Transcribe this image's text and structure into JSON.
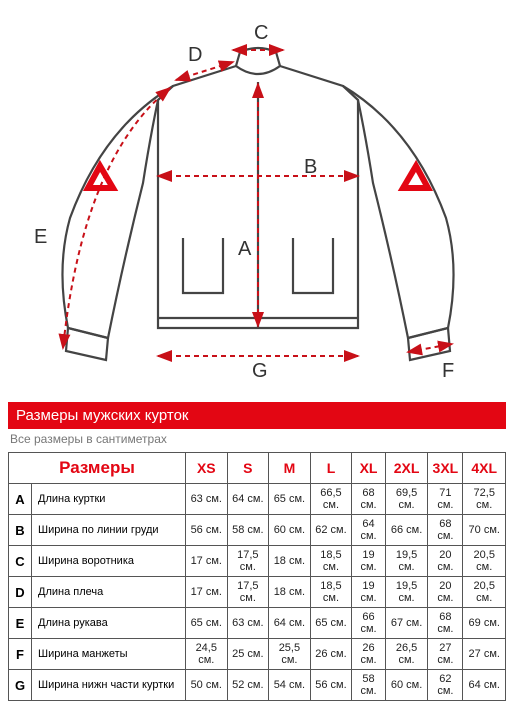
{
  "title": "Размеры мужских курток",
  "subtitle": "Все размеры в сантиметрах",
  "sizes_label": "Размеры",
  "diagram_labels": {
    "A": "A",
    "B": "B",
    "C": "C",
    "D": "D",
    "E": "E",
    "F": "F",
    "G": "G"
  },
  "colors": {
    "stroke": "#444",
    "arrow": "#c81018",
    "marker": "#e30613"
  },
  "columns": [
    "XS",
    "S",
    "M",
    "L",
    "XL",
    "2XL",
    "3XL",
    "4XL"
  ],
  "rows": [
    {
      "key": "A",
      "label": "Длина куртки",
      "vals": [
        "63 см.",
        "64 см.",
        "65 см.",
        "66,5 см.",
        "68 см.",
        "69,5 см.",
        "71 см.",
        "72,5 см."
      ]
    },
    {
      "key": "B",
      "label": "Ширина по линии груди",
      "vals": [
        "56 см.",
        "58 см.",
        "60 см.",
        "62 см.",
        "64 см.",
        "66 см.",
        "68 см.",
        "70 см."
      ]
    },
    {
      "key": "C",
      "label": "Ширина воротника",
      "vals": [
        "17 см.",
        "17,5 см.",
        "18 см.",
        "18,5 см.",
        "19 см.",
        "19,5 см.",
        "20 см.",
        "20,5 см."
      ]
    },
    {
      "key": "D",
      "label": "Длина плеча",
      "vals": [
        "17 см.",
        "17,5 см.",
        "18 см.",
        "18,5 см.",
        "19 см.",
        "19,5 см.",
        "20 см.",
        "20,5 см."
      ]
    },
    {
      "key": "E",
      "label": "Длина рукава",
      "vals": [
        "65 см.",
        "63 см.",
        "64 см.",
        "65 см.",
        "66 см.",
        "67 см.",
        "68 см.",
        "69 см."
      ]
    },
    {
      "key": "F",
      "label": "Ширина манжеты",
      "vals": [
        "24,5 см.",
        "25 см.",
        "25,5 см.",
        "26 см.",
        "26 см.",
        "26,5 см.",
        "27 см.",
        "27 см."
      ]
    },
    {
      "key": "G",
      "label": "Ширина нижн части куртки",
      "vals": [
        "50 см.",
        "52 см.",
        "54 см.",
        "56 см.",
        "58 см.",
        "60 см.",
        "62 см.",
        "64 см."
      ]
    }
  ]
}
